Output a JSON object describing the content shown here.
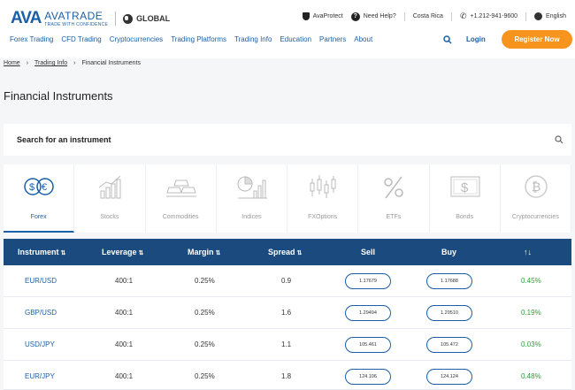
{
  "header": {
    "logo_mark": "AVA",
    "logo_name": "AVATRADE",
    "logo_tagline": "TRADE WITH CONFIDENCE",
    "region": "GLOBAL",
    "utility": {
      "protect": "AvaProtect",
      "help": "Need Help?",
      "country": "Costa Rica",
      "phone": "+1.212-941-9600",
      "language": "English"
    },
    "nav": [
      "Forex Trading",
      "CFD Trading",
      "Cryptocurrencies",
      "Trading Platforms",
      "Trading Info",
      "Education",
      "Partners",
      "About"
    ],
    "login_label": "Login",
    "register_label": "Register Now",
    "accent_color": "#f7941d",
    "brand_color": "#1b5fa6"
  },
  "breadcrumb": [
    "Home",
    "Trading Info",
    "Financial Instruments"
  ],
  "page_title": "Financial Instruments",
  "search": {
    "label": "Search for an instrument"
  },
  "categories": [
    {
      "label": "Forex",
      "icon": "currency-exchange-icon",
      "active": true
    },
    {
      "label": "Stocks",
      "icon": "stocks-chart-icon",
      "active": false
    },
    {
      "label": "Commodities",
      "icon": "gold-bars-icon",
      "active": false
    },
    {
      "label": "Indices",
      "icon": "indices-chart-icon",
      "active": false
    },
    {
      "label": "FXOptions",
      "icon": "candlestick-icon",
      "active": false
    },
    {
      "label": "ETFs",
      "icon": "percent-icon",
      "active": false
    },
    {
      "label": "Bonds",
      "icon": "dollar-bond-icon",
      "active": false
    },
    {
      "label": "Cryptocurrencies",
      "icon": "bitcoin-icon",
      "active": false
    }
  ],
  "table": {
    "headers": [
      "Instrument",
      "Leverage",
      "Margin",
      "Spread",
      "Sell",
      "Buy",
      "↑↓"
    ],
    "rows": [
      {
        "instrument": "EUR/USD",
        "leverage": "400:1",
        "margin": "0.25%",
        "spread": "0.9",
        "sell": "1.17679",
        "buy": "1.17688",
        "change": "0.45%"
      },
      {
        "instrument": "GBP/USD",
        "leverage": "400:1",
        "margin": "0.25%",
        "spread": "1.6",
        "sell": "1.29494",
        "buy": "1.29510",
        "change": "0.19%"
      },
      {
        "instrument": "USD/JPY",
        "leverage": "400:1",
        "margin": "0.25%",
        "spread": "1.1",
        "sell": "105.461",
        "buy": "105.472",
        "change": "0.03%"
      },
      {
        "instrument": "EUR/JPY",
        "leverage": "400:1",
        "margin": "0.25%",
        "spread": "1.8",
        "sell": "124.106",
        "buy": "124.124",
        "change": "0.48%"
      }
    ]
  }
}
